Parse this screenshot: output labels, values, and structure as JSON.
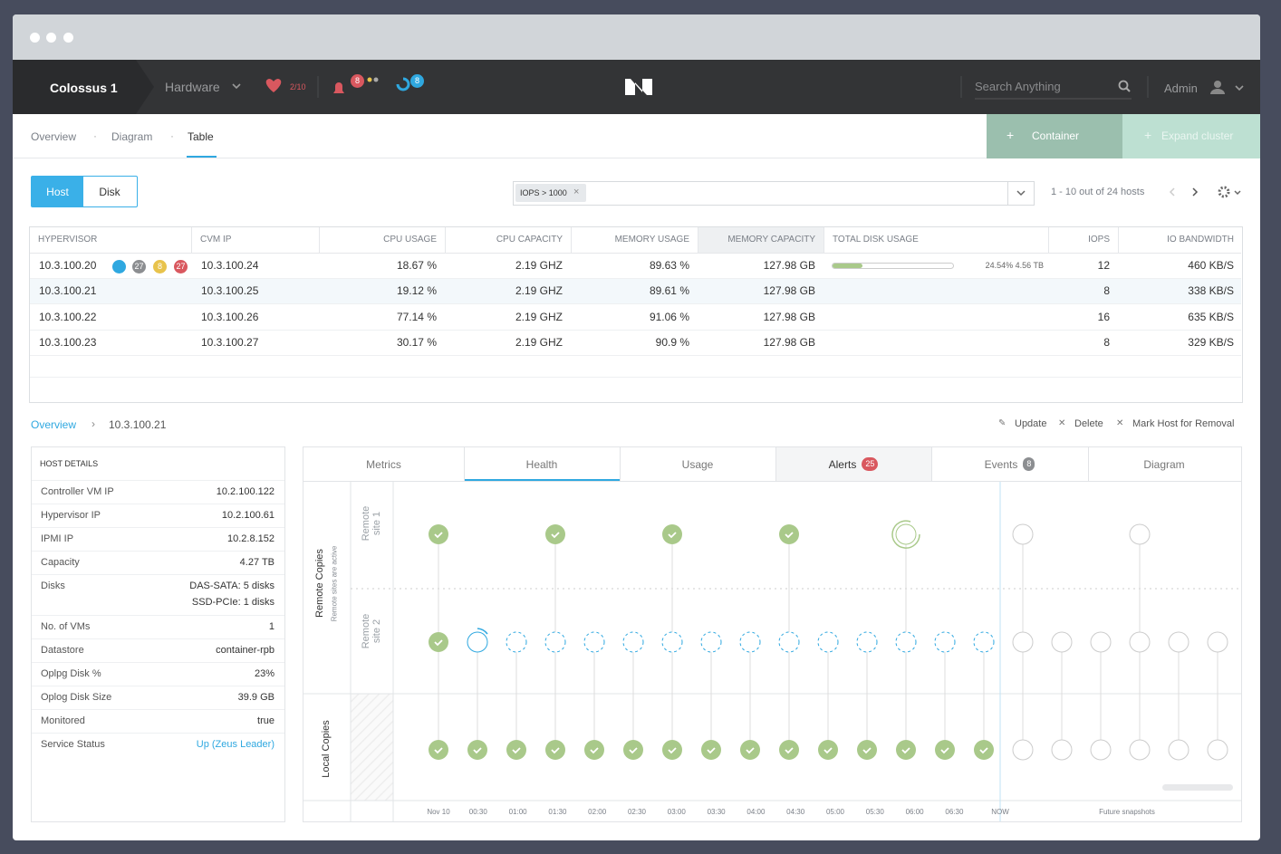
{
  "nav": {
    "cluster": "Colossus 1",
    "menu": "Hardware",
    "health": "2/10",
    "alerts_badge": "8",
    "tasks_badge": "8",
    "search_placeholder": "Search Anything",
    "user": "Admin"
  },
  "tabs": [
    "Overview",
    "Diagram",
    "Table"
  ],
  "actions": [
    "Container",
    "Expand cluster"
  ],
  "toggle": [
    "Host",
    "Disk"
  ],
  "filter": {
    "tag": "IOPS > 1000",
    "paging": "1 - 10 out of 24 hosts"
  },
  "table": {
    "columns": [
      "HYPERVISOR",
      "CVM IP",
      "CPU USAGE",
      "CPU CAPACITY",
      "MEMORY USAGE",
      "MEMORY CAPACITY",
      "TOTAL DISK USAGE",
      "IOPS",
      "IO BANDWIDTH"
    ],
    "badges": [
      "27",
      "8",
      "27"
    ],
    "disk_bar": 24.54,
    "rows": [
      [
        "10.3.100.20",
        "10.3.100.24",
        "18.67 %",
        "2.19 GHZ",
        "89.63 %",
        "127.98 GB",
        "24.54% 4.56 TB",
        "12",
        "460 KB/S"
      ],
      [
        "10.3.100.21",
        "10.3.100.25",
        "19.12 %",
        "2.19 GHZ",
        "89.61 %",
        "127.98 GB",
        null,
        "8",
        "338 KB/S"
      ],
      [
        "10.3.100.22",
        "10.3.100.26",
        "77.14 %",
        "2.19 GHZ",
        "91.06 %",
        "127.98 GB",
        null,
        "16",
        "635 KB/S"
      ],
      [
        "10.3.100.23",
        "10.3.100.27",
        "30.17 %",
        "2.19 GHZ",
        "90.9 %",
        "127.98 GB",
        null,
        "8",
        "329 KB/S"
      ]
    ]
  },
  "breadcrumb": [
    "Overview",
    "10.3.100.21"
  ],
  "host_actions": [
    "Update",
    "Delete",
    "Mark Host for Removal"
  ],
  "host_details": {
    "title": "HOST DETAILS",
    "rows": [
      [
        "Controller VM IP",
        "10.2.100.122"
      ],
      [
        "Hypervisor IP",
        "10.2.100.61"
      ],
      [
        "IPMI IP",
        "10.2.8.152"
      ],
      [
        "Capacity",
        "4.27 TB"
      ],
      [
        "Disks",
        "DAS-SATA: 5 disks",
        "SSD-PCIe: 1 disks"
      ],
      [
        "No. of VMs",
        "1"
      ],
      [
        "Datastore",
        "container-rpb"
      ],
      [
        "Oplpg Disk %",
        "23%"
      ],
      [
        "Oplog Disk Size",
        "39.9 GB"
      ],
      [
        "Monitored",
        "true"
      ],
      [
        "Service Status",
        "Up (Zeus Leader)"
      ]
    ]
  },
  "panel_tabs": [
    {
      "label": "Metrics"
    },
    {
      "label": "Health"
    },
    {
      "label": "Usage"
    },
    {
      "label": "Alerts",
      "badge": "25"
    },
    {
      "label": "Events",
      "badge": "8"
    },
    {
      "label": "Diagram"
    }
  ],
  "timeline": {
    "groups": [
      "Remote Copies",
      "Local Copies"
    ],
    "group_note": "Remote sites are active",
    "rows": [
      "Remote site 1",
      "Remote site 2"
    ],
    "times": [
      "Nov 10",
      "00:30",
      "01:00",
      "01:30",
      "02:00",
      "02:30",
      "03:00",
      "03:30",
      "04:00",
      "04:30",
      "05:00",
      "05:30",
      "06:00",
      "06:30"
    ],
    "now": "NOW",
    "future": "Future snapshots"
  }
}
